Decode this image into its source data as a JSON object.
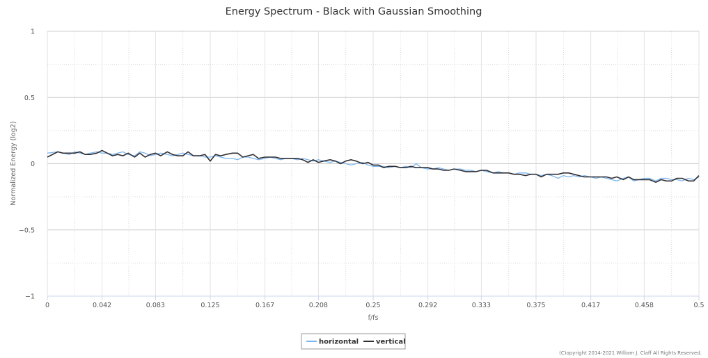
{
  "chart_data": {
    "type": "line",
    "title": "Energy Spectrum - Black with Gaussian Smoothing",
    "xlabel": "f/fs",
    "ylabel": "Normalized Energy (log2)",
    "xlim": [
      0,
      0.5
    ],
    "ylim": [
      -1,
      1
    ],
    "x_ticks": [
      0,
      0.042,
      0.083,
      0.125,
      0.167,
      0.208,
      0.25,
      0.292,
      0.333,
      0.375,
      0.417,
      0.458,
      0.5
    ],
    "x_tick_labels": [
      "0",
      "0.042",
      "0.083",
      "0.125",
      "0.167",
      "0.208",
      "0.25",
      "0.292",
      "0.333",
      "0.375",
      "0.417",
      "0.458",
      "0.5"
    ],
    "y_ticks": [
      1,
      0.5,
      0,
      -0.5,
      -1
    ],
    "y_tick_labels": [
      "1",
      "0.5",
      "0",
      "−0.5",
      "−1"
    ],
    "grid": true,
    "legend_position": "bottom-center",
    "series": [
      {
        "name": "horizontal",
        "color": "#7cb5ec",
        "points": [
          [
            0,
            0.08
          ],
          [
            0.008,
            0.09
          ],
          [
            0.012,
            0.08
          ],
          [
            0.017,
            0.07
          ],
          [
            0.021,
            0.09
          ],
          [
            0.025,
            0.08
          ],
          [
            0.029,
            0.07
          ],
          [
            0.033,
            0.08
          ],
          [
            0.038,
            0.09
          ],
          [
            0.042,
            0.08
          ],
          [
            0.046,
            0.08
          ],
          [
            0.05,
            0.07
          ],
          [
            0.054,
            0.08
          ],
          [
            0.058,
            0.09
          ],
          [
            0.062,
            0.07
          ],
          [
            0.067,
            0.06
          ],
          [
            0.071,
            0.09
          ],
          [
            0.075,
            0.08
          ],
          [
            0.079,
            0.06
          ],
          [
            0.083,
            0.07
          ],
          [
            0.087,
            0.08
          ],
          [
            0.092,
            0.07
          ],
          [
            0.096,
            0.06
          ],
          [
            0.1,
            0.07
          ],
          [
            0.104,
            0.08
          ],
          [
            0.108,
            0.07
          ],
          [
            0.112,
            0.06
          ],
          [
            0.117,
            0.06
          ],
          [
            0.121,
            0.05
          ],
          [
            0.125,
            0.05
          ],
          [
            0.129,
            0.06
          ],
          [
            0.133,
            0.05
          ],
          [
            0.137,
            0.04
          ],
          [
            0.142,
            0.04
          ],
          [
            0.146,
            0.03
          ],
          [
            0.15,
            0.05
          ],
          [
            0.154,
            0.05
          ],
          [
            0.158,
            0.04
          ],
          [
            0.162,
            0.03
          ],
          [
            0.167,
            0.04
          ],
          [
            0.171,
            0.05
          ],
          [
            0.175,
            0.04
          ],
          [
            0.179,
            0.03
          ],
          [
            0.183,
            0.04
          ],
          [
            0.187,
            0.04
          ],
          [
            0.192,
            0.03
          ],
          [
            0.196,
            0.04
          ],
          [
            0.2,
            0.03
          ],
          [
            0.204,
            0.02
          ],
          [
            0.208,
            0.03
          ],
          [
            0.212,
            0.02
          ],
          [
            0.217,
            0.01
          ],
          [
            0.221,
            0.02
          ],
          [
            0.225,
            0.01
          ],
          [
            0.229,
            0.0
          ],
          [
            0.233,
            -0.01
          ],
          [
            0.237,
            0.0
          ],
          [
            0.242,
            0.01
          ],
          [
            0.246,
            -0.01
          ],
          [
            0.25,
            -0.02
          ],
          [
            0.254,
            -0.02
          ],
          [
            0.258,
            -0.02
          ],
          [
            0.262,
            -0.03
          ],
          [
            0.267,
            -0.02
          ],
          [
            0.271,
            -0.03
          ],
          [
            0.275,
            -0.02
          ],
          [
            0.279,
            -0.03
          ],
          [
            0.283,
            0.0
          ],
          [
            0.287,
            -0.03
          ],
          [
            0.292,
            -0.04
          ],
          [
            0.296,
            -0.04
          ],
          [
            0.3,
            -0.03
          ],
          [
            0.304,
            -0.04
          ],
          [
            0.308,
            -0.05
          ],
          [
            0.312,
            -0.04
          ],
          [
            0.317,
            -0.04
          ],
          [
            0.321,
            -0.05
          ],
          [
            0.325,
            -0.05
          ],
          [
            0.329,
            -0.06
          ],
          [
            0.333,
            -0.05
          ],
          [
            0.337,
            -0.06
          ],
          [
            0.342,
            -0.07
          ],
          [
            0.346,
            -0.06
          ],
          [
            0.35,
            -0.07
          ],
          [
            0.354,
            -0.07
          ],
          [
            0.358,
            -0.08
          ],
          [
            0.362,
            -0.07
          ],
          [
            0.367,
            -0.07
          ],
          [
            0.371,
            -0.08
          ],
          [
            0.375,
            -0.08
          ],
          [
            0.379,
            -0.09
          ],
          [
            0.383,
            -0.08
          ],
          [
            0.387,
            -0.09
          ],
          [
            0.392,
            -0.11
          ],
          [
            0.396,
            -0.09
          ],
          [
            0.4,
            -0.1
          ],
          [
            0.404,
            -0.09
          ],
          [
            0.408,
            -0.1
          ],
          [
            0.412,
            -0.09
          ],
          [
            0.417,
            -0.1
          ],
          [
            0.421,
            -0.11
          ],
          [
            0.425,
            -0.1
          ],
          [
            0.429,
            -0.11
          ],
          [
            0.433,
            -0.12
          ],
          [
            0.437,
            -0.13
          ],
          [
            0.442,
            -0.11
          ],
          [
            0.446,
            -0.1
          ],
          [
            0.45,
            -0.13
          ],
          [
            0.454,
            -0.12
          ],
          [
            0.458,
            -0.11
          ],
          [
            0.462,
            -0.11
          ],
          [
            0.467,
            -0.13
          ],
          [
            0.471,
            -0.11
          ],
          [
            0.475,
            -0.11
          ],
          [
            0.479,
            -0.12
          ],
          [
            0.483,
            -0.12
          ],
          [
            0.487,
            -0.13
          ],
          [
            0.492,
            -0.11
          ],
          [
            0.496,
            -0.12
          ],
          [
            0.5,
            -0.1
          ]
        ]
      },
      {
        "name": "vertical",
        "color": "#2f2f37",
        "points": [
          [
            0,
            0.05
          ],
          [
            0.008,
            0.09
          ],
          [
            0.012,
            0.08
          ],
          [
            0.017,
            0.08
          ],
          [
            0.021,
            0.08
          ],
          [
            0.025,
            0.09
          ],
          [
            0.029,
            0.07
          ],
          [
            0.033,
            0.07
          ],
          [
            0.038,
            0.08
          ],
          [
            0.042,
            0.1
          ],
          [
            0.046,
            0.08
          ],
          [
            0.05,
            0.06
          ],
          [
            0.054,
            0.07
          ],
          [
            0.058,
            0.06
          ],
          [
            0.062,
            0.08
          ],
          [
            0.067,
            0.05
          ],
          [
            0.071,
            0.08
          ],
          [
            0.075,
            0.05
          ],
          [
            0.079,
            0.07
          ],
          [
            0.083,
            0.08
          ],
          [
            0.087,
            0.06
          ],
          [
            0.092,
            0.09
          ],
          [
            0.096,
            0.07
          ],
          [
            0.1,
            0.06
          ],
          [
            0.104,
            0.06
          ],
          [
            0.108,
            0.09
          ],
          [
            0.112,
            0.06
          ],
          [
            0.117,
            0.06
          ],
          [
            0.121,
            0.07
          ],
          [
            0.125,
            0.02
          ],
          [
            0.129,
            0.07
          ],
          [
            0.133,
            0.06
          ],
          [
            0.137,
            0.07
          ],
          [
            0.142,
            0.08
          ],
          [
            0.146,
            0.08
          ],
          [
            0.15,
            0.05
          ],
          [
            0.154,
            0.06
          ],
          [
            0.158,
            0.07
          ],
          [
            0.162,
            0.04
          ],
          [
            0.167,
            0.05
          ],
          [
            0.171,
            0.05
          ],
          [
            0.175,
            0.05
          ],
          [
            0.179,
            0.04
          ],
          [
            0.183,
            0.04
          ],
          [
            0.187,
            0.04
          ],
          [
            0.192,
            0.04
          ],
          [
            0.196,
            0.03
          ],
          [
            0.2,
            0.01
          ],
          [
            0.204,
            0.03
          ],
          [
            0.208,
            0.01
          ],
          [
            0.212,
            0.02
          ],
          [
            0.217,
            0.03
          ],
          [
            0.221,
            0.02
          ],
          [
            0.225,
            0.0
          ],
          [
            0.229,
            0.02
          ],
          [
            0.233,
            0.03
          ],
          [
            0.237,
            0.02
          ],
          [
            0.242,
            0.0
          ],
          [
            0.246,
            0.01
          ],
          [
            0.25,
            -0.01
          ],
          [
            0.254,
            -0.01
          ],
          [
            0.258,
            -0.03
          ],
          [
            0.262,
            -0.02
          ],
          [
            0.267,
            -0.02
          ],
          [
            0.271,
            -0.03
          ],
          [
            0.275,
            -0.03
          ],
          [
            0.279,
            -0.02
          ],
          [
            0.283,
            -0.03
          ],
          [
            0.287,
            -0.03
          ],
          [
            0.292,
            -0.03
          ],
          [
            0.296,
            -0.04
          ],
          [
            0.3,
            -0.04
          ],
          [
            0.304,
            -0.05
          ],
          [
            0.308,
            -0.05
          ],
          [
            0.312,
            -0.04
          ],
          [
            0.317,
            -0.05
          ],
          [
            0.321,
            -0.06
          ],
          [
            0.325,
            -0.06
          ],
          [
            0.329,
            -0.06
          ],
          [
            0.333,
            -0.05
          ],
          [
            0.337,
            -0.05
          ],
          [
            0.342,
            -0.07
          ],
          [
            0.346,
            -0.07
          ],
          [
            0.35,
            -0.07
          ],
          [
            0.354,
            -0.07
          ],
          [
            0.358,
            -0.08
          ],
          [
            0.362,
            -0.08
          ],
          [
            0.367,
            -0.09
          ],
          [
            0.371,
            -0.08
          ],
          [
            0.375,
            -0.08
          ],
          [
            0.379,
            -0.1
          ],
          [
            0.383,
            -0.08
          ],
          [
            0.387,
            -0.08
          ],
          [
            0.392,
            -0.08
          ],
          [
            0.396,
            -0.07
          ],
          [
            0.4,
            -0.07
          ],
          [
            0.404,
            -0.08
          ],
          [
            0.408,
            -0.09
          ],
          [
            0.412,
            -0.1
          ],
          [
            0.417,
            -0.1
          ],
          [
            0.421,
            -0.1
          ],
          [
            0.425,
            -0.1
          ],
          [
            0.429,
            -0.1
          ],
          [
            0.433,
            -0.11
          ],
          [
            0.437,
            -0.1
          ],
          [
            0.442,
            -0.12
          ],
          [
            0.446,
            -0.1
          ],
          [
            0.45,
            -0.12
          ],
          [
            0.454,
            -0.12
          ],
          [
            0.458,
            -0.12
          ],
          [
            0.462,
            -0.12
          ],
          [
            0.467,
            -0.14
          ],
          [
            0.471,
            -0.12
          ],
          [
            0.475,
            -0.13
          ],
          [
            0.479,
            -0.13
          ],
          [
            0.483,
            -0.11
          ],
          [
            0.487,
            -0.11
          ],
          [
            0.492,
            -0.13
          ],
          [
            0.496,
            -0.13
          ],
          [
            0.5,
            -0.09
          ]
        ]
      }
    ]
  },
  "credit": "(C)opyright 2014-2021 William J. Claff All Rights Reserved."
}
